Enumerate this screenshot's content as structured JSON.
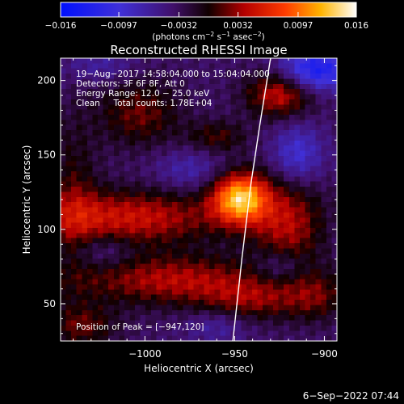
{
  "chart_data": {
    "type": "heatmap",
    "title": "Reconstructed RHESSI Image",
    "xlabel": "Heliocentric X (arcsec)",
    "ylabel": "Heliocentric Y (arcsec)",
    "xlim": [
      -1047,
      -893
    ],
    "ylim": [
      25,
      215
    ],
    "x_ticks": [
      -1000,
      -950,
      -900
    ],
    "x_tick_labels": [
      "−1000",
      "−950",
      "−900"
    ],
    "y_ticks": [
      50,
      100,
      150,
      200
    ],
    "y_tick_labels": [
      "50",
      "100",
      "150",
      "200"
    ],
    "colorbar": {
      "range": [
        -0.016,
        0.016
      ],
      "ticks": [
        -0.016,
        -0.0097,
        -0.0032,
        0.0032,
        0.0097,
        0.016
      ],
      "tick_labels": [
        "−0.016",
        "−0.0097",
        "−0.0032",
        "0.0032",
        "0.0097",
        "0.016"
      ],
      "unit_label_parts": [
        "(photons cm",
        "−2",
        " s",
        "−1",
        " asec",
        "−2",
        ")"
      ]
    },
    "annotations": [
      "19−Aug−2017 14:58:04.000 to 15:04:04.000",
      "Detectors: 3F 6F 8F, Att 0",
      "Energy Range: 12.0 − 25.0 keV",
      "Clean     Total counts: 1.78E+04"
    ],
    "peak_label": "Position of Peak = [−947,120]",
    "peak": [
      -947,
      120
    ],
    "limb_curve": [
      [
        -951,
        25
      ],
      [
        -946,
        80
      ],
      [
        -941,
        130
      ],
      [
        -936,
        170
      ],
      [
        -930,
        215
      ]
    ],
    "blobs": [
      {
        "x": -947,
        "y": 121,
        "sx": 11,
        "sy": 12,
        "a": 0.016
      },
      {
        "x": -1008,
        "y": 108,
        "sx": 36,
        "sy": 13,
        "a": 0.0085
      },
      {
        "x": -985,
        "y": 66,
        "sx": 38,
        "sy": 12,
        "a": 0.0075
      },
      {
        "x": -920,
        "y": 104,
        "sx": 14,
        "sy": 22,
        "a": 0.0072
      },
      {
        "x": -925,
        "y": 191,
        "sx": 13,
        "sy": 11,
        "a": 0.0085
      },
      {
        "x": -1003,
        "y": 178,
        "sx": 16,
        "sy": 16,
        "a": 0.0055
      },
      {
        "x": -960,
        "y": 162,
        "sx": 12,
        "sy": 8,
        "a": 0.0045
      },
      {
        "x": -940,
        "y": 52,
        "sx": 20,
        "sy": 10,
        "a": 0.005
      },
      {
        "x": -904,
        "y": 55,
        "sx": 12,
        "sy": 12,
        "a": 0.0045
      },
      {
        "x": -1040,
        "y": 120,
        "sx": 10,
        "sy": 40,
        "a": 0.004
      },
      {
        "x": -1035,
        "y": 35,
        "sx": 14,
        "sy": 10,
        "a": 0.005
      },
      {
        "x": -905,
        "y": 207,
        "sx": 14,
        "sy": 10,
        "a": -0.01
      },
      {
        "x": -915,
        "y": 150,
        "sx": 10,
        "sy": 14,
        "a": -0.006
      },
      {
        "x": -975,
        "y": 140,
        "sx": 14,
        "sy": 10,
        "a": -0.0035
      },
      {
        "x": -925,
        "y": 75,
        "sx": 10,
        "sy": 8,
        "a": -0.004
      },
      {
        "x": -1025,
        "y": 85,
        "sx": 12,
        "sy": 8,
        "a": -0.003
      },
      {
        "x": -960,
        "y": 35,
        "sx": 12,
        "sy": 8,
        "a": -0.003
      },
      {
        "x": -1025,
        "y": 210,
        "sx": 14,
        "sy": 8,
        "a": -0.003
      }
    ]
  },
  "footer": {
    "date": "6−Sep−2022 07:44"
  }
}
